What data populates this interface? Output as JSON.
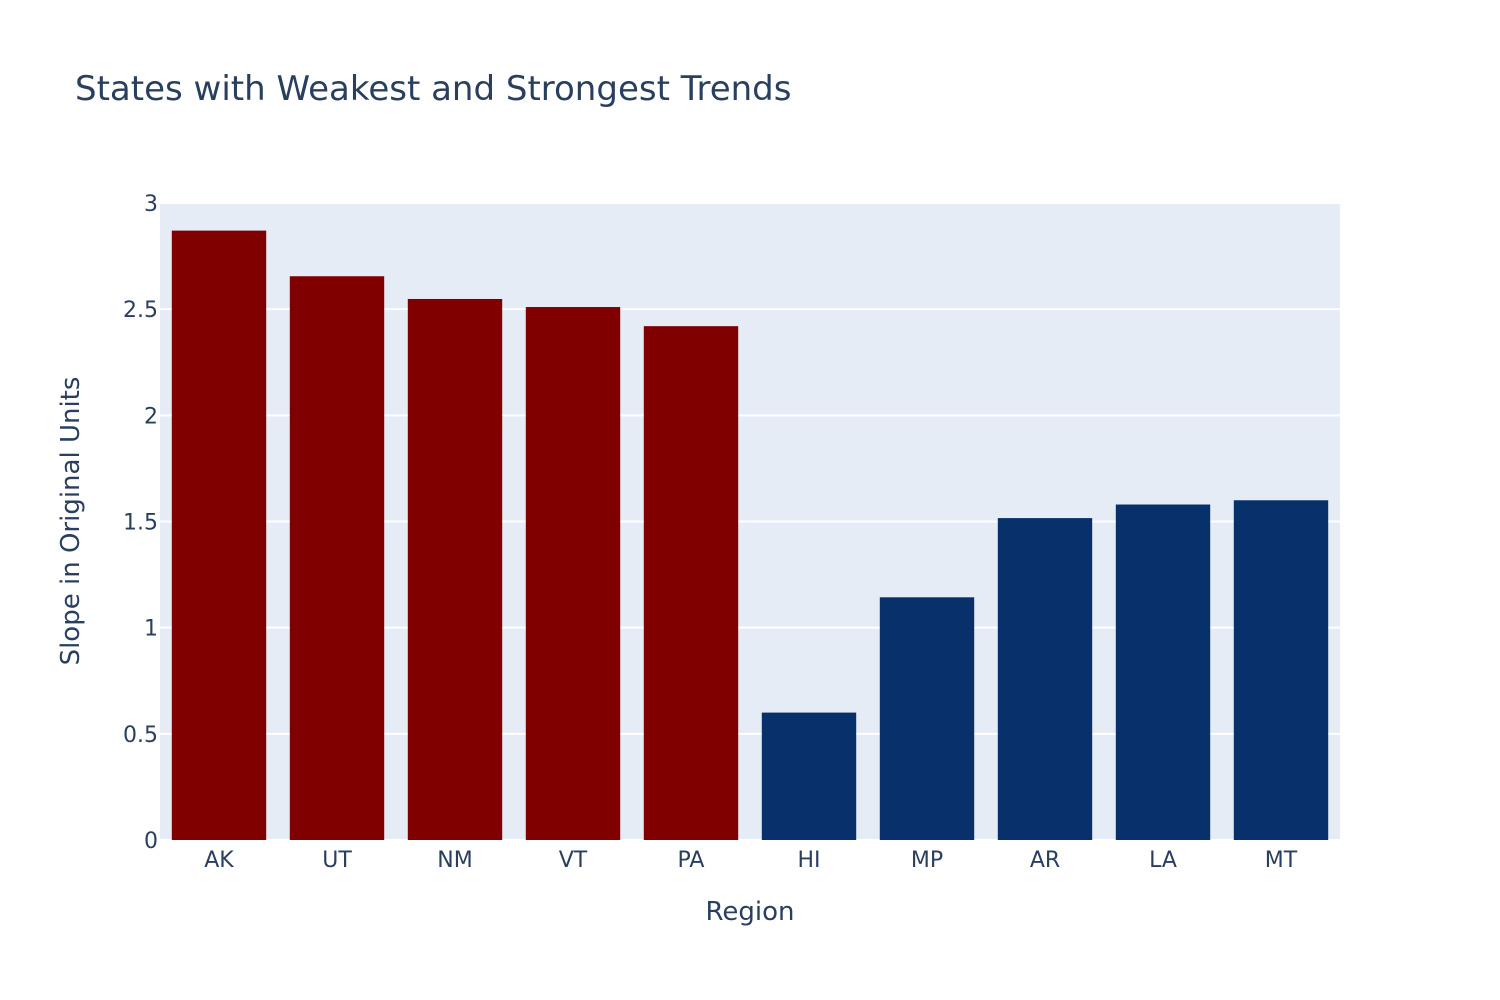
{
  "chart_data": {
    "type": "bar",
    "title": "States with Weakest and Strongest Trends",
    "xlabel": "Region",
    "ylabel": "Slope in Original Units",
    "categories": [
      "AK",
      "UT",
      "NM",
      "VT",
      "PA",
      "HI",
      "MP",
      "AR",
      "LA",
      "MT"
    ],
    "values": [
      2.87,
      2.655,
      2.548,
      2.51,
      2.42,
      0.6,
      1.143,
      1.516,
      1.58,
      1.6
    ],
    "bar_colors": [
      "#800000",
      "#800000",
      "#800000",
      "#800000",
      "#800000",
      "#08306b",
      "#08306b",
      "#08306b",
      "#08306b",
      "#08306b"
    ],
    "ylim": [
      0,
      3
    ],
    "yticks": [
      0,
      0.5,
      1,
      1.5,
      2,
      2.5,
      3
    ],
    "ytick_labels": [
      "0",
      "0.5",
      "1",
      "1.5",
      "2",
      "2.5",
      "3"
    ],
    "grid": true,
    "plot_background": "#e5ecf6",
    "grid_color": "#ffffff",
    "text_color": "#2a3f5f"
  }
}
